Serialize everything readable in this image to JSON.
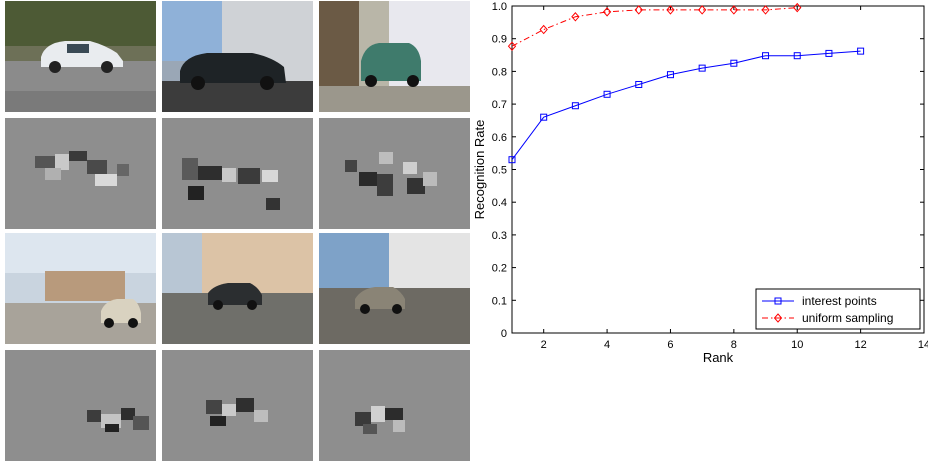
{
  "figure": {
    "image_grid": [
      {
        "photo": "car-street-photo-1",
        "patch_map": "car-patch-map-1"
      },
      {
        "photo": "car-street-photo-2",
        "patch_map": "car-patch-map-2"
      },
      {
        "photo": "car-street-photo-3",
        "patch_map": "car-patch-map-3"
      },
      {
        "photo": "car-street-photo-4",
        "patch_map": "car-patch-map-4"
      },
      {
        "photo": "car-street-photo-5",
        "patch_map": "car-patch-map-5"
      },
      {
        "photo": "car-street-photo-6",
        "patch_map": "car-patch-map-6"
      }
    ]
  },
  "chart_data": {
    "type": "line",
    "xlabel": "Rank",
    "ylabel": "Recognition Rate",
    "xlim": [
      1,
      14
    ],
    "ylim": [
      0,
      1
    ],
    "x_ticks": [
      2,
      4,
      6,
      8,
      10,
      12,
      14
    ],
    "x_tick_labels": [
      "2",
      "4",
      "6",
      "8",
      "10",
      "12",
      "14"
    ],
    "y_ticks": [
      0,
      0.1,
      0.2,
      0.3,
      0.4,
      0.5,
      0.6,
      0.7,
      0.8,
      0.9,
      1
    ],
    "y_tick_labels": [
      "0",
      "0.1",
      "0.2",
      "0.3",
      "0.4",
      "0.5",
      "0.6",
      "0.7",
      "0.8",
      "0.9",
      "1.0"
    ],
    "legend_position": "bottom-right",
    "grid": false,
    "series": [
      {
        "name": "interest points",
        "color": "#0000ff",
        "marker": "square",
        "linestyle": "solid",
        "x": [
          1,
          2,
          3,
          4,
          5,
          6,
          7,
          8,
          9,
          10,
          11,
          12
        ],
        "y": [
          0.53,
          0.66,
          0.695,
          0.73,
          0.76,
          0.79,
          0.81,
          0.825,
          0.848,
          0.848,
          0.855,
          0.862
        ]
      },
      {
        "name": "uniform sampling",
        "color": "#ff0000",
        "marker": "diamond",
        "linestyle": "dashdot",
        "x": [
          1,
          2,
          3,
          4,
          5,
          6,
          7,
          8,
          9,
          10
        ],
        "y": [
          0.877,
          0.928,
          0.967,
          0.982,
          0.988,
          0.988,
          0.988,
          0.988,
          0.988,
          0.995
        ]
      }
    ]
  }
}
